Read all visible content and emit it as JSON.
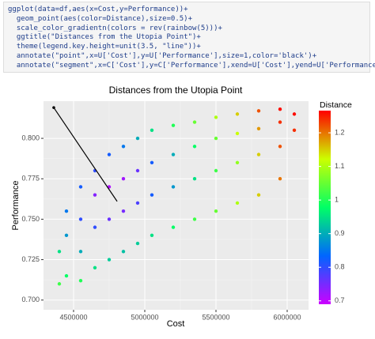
{
  "code": [
    "ggplot(data=df,aes(x=Cost,y=Performance))+",
    "  geom_point(aes(color=Distance),size=0.5)+",
    "  scale_color_gradientn(colors = rev(rainbow(5)))+",
    "  ggtitle(\"Distances from the Utopia Point\")+",
    "  theme(legend.key.height=unit(3.5, \"line\"))+",
    "  annotate(\"point\",x=U['Cost'],y=U['Performance'],size=1,color='black')+",
    "  annotate(\"segment\",x=C['Cost'],y=C['Performance'],xend=U['Cost'],yend=U['Performance'])"
  ],
  "chart_data": {
    "type": "scatter",
    "title": "Distances from the Utopia Point",
    "x_label": "Cost",
    "y_label": "Performance",
    "legend_title": "Distance",
    "colors": [
      "#CC00FF",
      "#0066FF",
      "#00FF66",
      "#CCFF00",
      "#FF0000"
    ],
    "x": [
      4400000,
      4400000,
      4450000,
      4450000,
      4450000,
      4550000,
      4550000,
      4550000,
      4550000,
      4650000,
      4650000,
      4650000,
      4650000,
      4750000,
      4750000,
      4750000,
      4750000,
      4850000,
      4850000,
      4850000,
      4850000,
      4950000,
      4950000,
      4950000,
      4950000,
      5050000,
      5050000,
      5050000,
      5050000,
      5200000,
      5200000,
      5200000,
      5200000,
      5350000,
      5350000,
      5350000,
      5350000,
      5500000,
      5500000,
      5500000,
      5500000,
      5650000,
      5650000,
      5650000,
      5650000,
      5800000,
      5800000,
      5800000,
      5800000,
      5950000,
      5950000,
      5950000,
      5950000,
      6050000,
      6050000
    ],
    "values": [
      0.71,
      0.73,
      0.715,
      0.74,
      0.755,
      0.712,
      0.73,
      0.75,
      0.77,
      0.72,
      0.745,
      0.765,
      0.78,
      0.725,
      0.75,
      0.77,
      0.79,
      0.73,
      0.755,
      0.775,
      0.795,
      0.735,
      0.76,
      0.78,
      0.8,
      0.74,
      0.765,
      0.785,
      0.805,
      0.745,
      0.77,
      0.79,
      0.808,
      0.75,
      0.775,
      0.795,
      0.81,
      0.755,
      0.78,
      0.8,
      0.813,
      0.76,
      0.785,
      0.803,
      0.815,
      0.765,
      0.79,
      0.806,
      0.817,
      0.775,
      0.795,
      0.81,
      0.818,
      0.805,
      0.815
    ],
    "distance": [
      1.02,
      0.95,
      0.98,
      0.88,
      0.85,
      1.0,
      0.9,
      0.8,
      0.82,
      0.95,
      0.8,
      0.74,
      0.8,
      0.93,
      0.76,
      0.71,
      0.82,
      0.92,
      0.75,
      0.72,
      0.85,
      0.93,
      0.78,
      0.76,
      0.9,
      0.95,
      0.82,
      0.82,
      0.95,
      0.98,
      0.88,
      0.9,
      1.0,
      1.02,
      0.95,
      0.98,
      1.05,
      1.05,
      1.02,
      1.05,
      1.1,
      1.1,
      1.08,
      1.12,
      1.15,
      1.15,
      1.15,
      1.18,
      1.22,
      1.2,
      1.22,
      1.24,
      1.26,
      1.24,
      1.26
    ],
    "utopia": {
      "x": 4361000,
      "y": 0.819
    },
    "segment_end": {
      "x": 4806000,
      "y": 0.761
    },
    "xlim": [
      4289000,
      6150000
    ],
    "xticks": [
      4500000,
      5000000,
      5500000,
      6000000
    ],
    "ylim": [
      0.694,
      0.823
    ],
    "yticks": [
      {
        "value": 0.7,
        "label": "0.700"
      },
      {
        "value": 0.725,
        "label": "0.725"
      },
      {
        "value": 0.75,
        "label": "0.750"
      },
      {
        "value": 0.775,
        "label": "0.775"
      },
      {
        "value": 0.8,
        "label": "0.800"
      }
    ],
    "clim": [
      0.69,
      1.266
    ],
    "cticks": [
      0.7,
      0.8,
      0.9,
      1.0,
      1.1,
      1.2
    ],
    "grid": true
  }
}
